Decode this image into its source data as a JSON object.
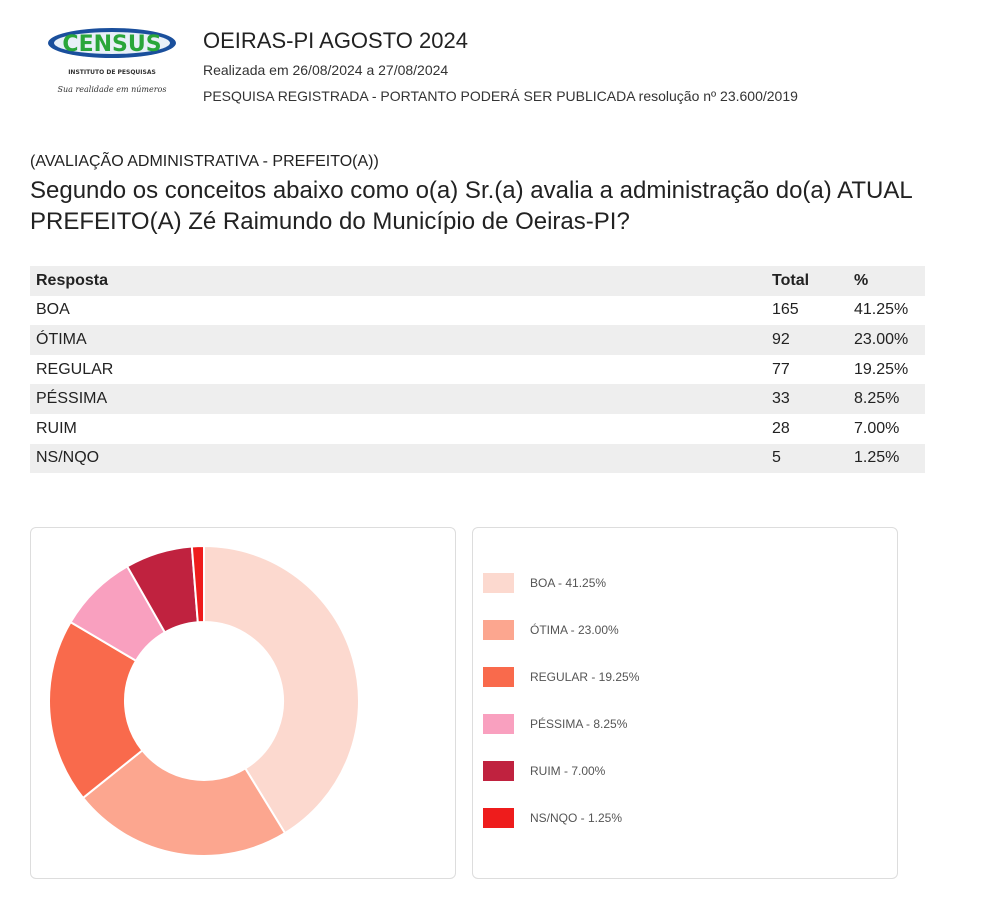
{
  "header": {
    "logo_text": "CENSUS",
    "logo_sub": "INSTITUTO DE PESQUISAS",
    "logo_tagline": "Sua realidade em números",
    "title": "OEIRAS-PI AGOSTO 2024",
    "subtitle": "Realizada em 26/08/2024 a 27/08/2024",
    "registration": "PESQUISA REGISTRADA - PORTANTO PODERÁ SER PUBLICADA resolução nº 23.600/2019"
  },
  "question": {
    "category": "(AVALIAÇÃO ADMINISTRATIVA - PREFEITO(A))",
    "text": "Segundo os conceitos abaixo como o(a) Sr.(a) avalia a administração do(a) ATUAL PREFEITO(A) Zé Raimundo do Município de Oeiras-PI?"
  },
  "table": {
    "headers": [
      "Resposta",
      "Total",
      "%"
    ],
    "rows": [
      [
        "BOA",
        "165",
        "41.25%"
      ],
      [
        "ÓTIMA",
        "92",
        "23.00%"
      ],
      [
        "REGULAR",
        "77",
        "19.25%"
      ],
      [
        "PÉSSIMA",
        "33",
        "8.25%"
      ],
      [
        "RUIM",
        "28",
        "7.00%"
      ],
      [
        "NS/NQO",
        "5",
        "1.25%"
      ]
    ]
  },
  "chart_data": {
    "type": "pie",
    "donut": true,
    "categories": [
      "BOA",
      "ÓTIMA",
      "REGULAR",
      "PÉSSIMA",
      "RUIM",
      "NS/NQO"
    ],
    "values": [
      41.25,
      23.0,
      19.25,
      8.25,
      7.0,
      1.25
    ],
    "colors": [
      "#fcd9cf",
      "#fca68f",
      "#f96a4c",
      "#f9a0bf",
      "#c0223f",
      "#ee1c1c"
    ],
    "legend_labels": [
      "BOA - 41.25%",
      "ÓTIMA - 23.00%",
      "REGULAR - 19.25%",
      "PÉSSIMA - 8.25%",
      "RUIM - 7.00%",
      "NS/NQO - 1.25%"
    ],
    "legend": "right"
  }
}
